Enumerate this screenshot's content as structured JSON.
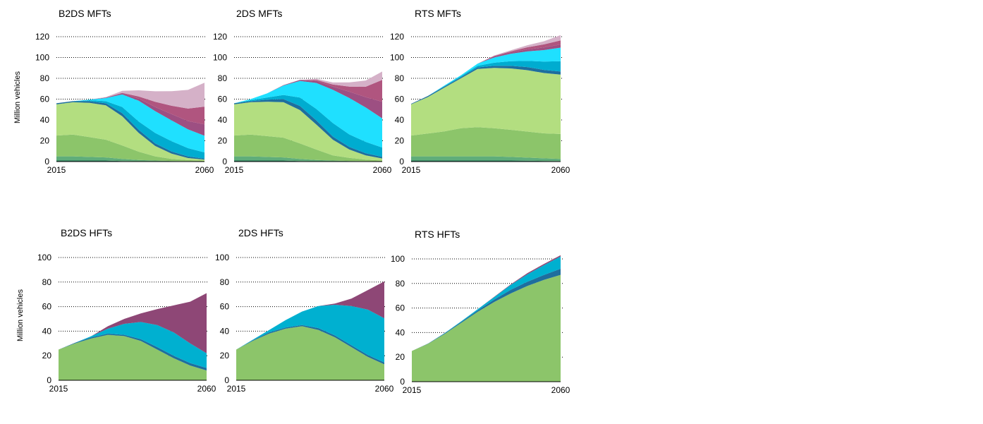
{
  "ylabel": "Million vehicles",
  "chart_data": [
    {
      "id": "b2ds-mft",
      "type": "area",
      "title": "B2DS MFTs",
      "x": [
        2015,
        2020,
        2025,
        2030,
        2035,
        2040,
        2045,
        2050,
        2055,
        2060
      ],
      "xticks": [
        "2015",
        "2060"
      ],
      "ylim": [
        0,
        120
      ],
      "yticks": [
        0,
        20,
        40,
        60,
        80,
        100,
        120
      ],
      "series": [
        {
          "values": [
            1,
            1,
            1,
            1,
            0.5,
            0.3,
            0.2,
            0.1,
            0.1,
            0.1
          ]
        },
        {
          "values": [
            4,
            4,
            3.5,
            3,
            2,
            1.2,
            0.8,
            0.5,
            0.3,
            0.2
          ]
        },
        {
          "values": [
            20,
            21,
            19,
            17,
            13,
            8,
            4,
            2,
            1,
            0.5
          ]
        },
        {
          "values": [
            30,
            31,
            33,
            33,
            28,
            18,
            10,
            5,
            2,
            1
          ]
        },
        {
          "values": [
            1,
            1,
            1.5,
            2,
            3,
            3,
            2.5,
            2,
            1.5,
            1
          ]
        },
        {
          "values": [
            0,
            0,
            1,
            2,
            6,
            8,
            10,
            10,
            8,
            6
          ]
        },
        {
          "values": [
            0,
            0,
            0.5,
            3,
            12,
            20,
            21,
            20,
            18,
            16
          ]
        },
        {
          "values": [
            0,
            0,
            0,
            0.5,
            1,
            2,
            4,
            6,
            8,
            11
          ]
        },
        {
          "values": [
            0,
            0,
            0,
            0,
            0.5,
            2,
            5,
            8,
            12,
            17
          ]
        },
        {
          "values": [
            0,
            0,
            0,
            0.5,
            2,
            6,
            10,
            14,
            18,
            23
          ]
        }
      ]
    },
    {
      "id": "2ds-mft",
      "type": "area",
      "title": "2DS MFTs",
      "x": [
        2015,
        2020,
        2025,
        2030,
        2035,
        2040,
        2045,
        2050,
        2055,
        2060
      ],
      "xticks": [
        "2015",
        "2060"
      ],
      "ylim": [
        0,
        120
      ],
      "yticks": [
        0,
        20,
        40,
        60,
        80,
        100,
        120
      ],
      "series": [
        {
          "values": [
            1,
            1,
            1,
            1,
            0.5,
            0.3,
            0.2,
            0.1,
            0.1,
            0.1
          ]
        },
        {
          "values": [
            4,
            4,
            3.5,
            3,
            2,
            1.2,
            0.8,
            0.5,
            0.3,
            0.2
          ]
        },
        {
          "values": [
            20,
            21,
            20,
            19,
            15,
            10,
            5,
            3,
            1.5,
            0.7
          ]
        },
        {
          "values": [
            30,
            31,
            33,
            34,
            32,
            24,
            15,
            8,
            4,
            2
          ]
        },
        {
          "values": [
            1,
            1,
            2,
            3,
            4,
            4,
            3,
            2.5,
            2,
            1.5
          ]
        },
        {
          "values": [
            0,
            1,
            2,
            4,
            8,
            11,
            13,
            12,
            11,
            9
          ]
        },
        {
          "values": [
            0,
            1,
            4,
            9,
            16,
            25,
            32,
            35,
            33,
            28
          ]
        },
        {
          "values": [
            0,
            0,
            0,
            0.5,
            1,
            2,
            3,
            6,
            10,
            16
          ]
        },
        {
          "values": [
            0,
            0,
            0,
            0,
            0,
            1,
            2,
            5,
            10,
            21
          ]
        },
        {
          "values": [
            0,
            0,
            0,
            0,
            0,
            1,
            2,
            4,
            6,
            8
          ]
        }
      ]
    },
    {
      "id": "rts-mft",
      "type": "area",
      "title": "RTS MFTs",
      "x": [
        2015,
        2020,
        2025,
        2030,
        2035,
        2040,
        2045,
        2050,
        2055,
        2060
      ],
      "xticks": [
        "2015",
        "2060"
      ],
      "ylim": [
        0,
        120
      ],
      "yticks": [
        0,
        20,
        40,
        60,
        80,
        100,
        120
      ],
      "series": [
        {
          "values": [
            1,
            1,
            1,
            1,
            1,
            1,
            1,
            0.8,
            0.6,
            0.5
          ]
        },
        {
          "values": [
            4,
            4,
            4,
            4,
            4,
            4,
            3.5,
            3,
            2.5,
            2
          ]
        },
        {
          "values": [
            20,
            22,
            24,
            27,
            28,
            27,
            26,
            25,
            24,
            24
          ]
        },
        {
          "values": [
            30,
            35,
            42,
            48,
            56,
            58,
            59,
            59,
            58,
            57
          ]
        },
        {
          "values": [
            0.5,
            1,
            1,
            1,
            1.5,
            2,
            2.5,
            3,
            3,
            3
          ]
        },
        {
          "values": [
            0,
            0,
            0.5,
            1,
            1.5,
            3,
            4.5,
            6,
            8,
            10
          ]
        },
        {
          "values": [
            0,
            0,
            0.5,
            1,
            2,
            5,
            7,
            9,
            11,
            13
          ]
        },
        {
          "values": [
            0,
            0,
            0,
            0,
            0,
            1,
            1.5,
            2,
            2.5,
            3
          ]
        },
        {
          "values": [
            0,
            0,
            0,
            0,
            0,
            0.5,
            1,
            2,
            3,
            4
          ]
        },
        {
          "values": [
            0,
            0,
            0,
            0,
            0,
            0.5,
            1,
            2,
            3,
            5
          ]
        }
      ]
    },
    {
      "id": "b2ds-hft",
      "type": "area",
      "title": "B2DS HFTs",
      "x": [
        2015,
        2020,
        2025,
        2030,
        2035,
        2040,
        2045,
        2050,
        2055,
        2060
      ],
      "xticks": [
        "2015",
        "2060"
      ],
      "ylim": [
        0,
        100
      ],
      "yticks": [
        0,
        20,
        40,
        60,
        80,
        100
      ],
      "series": [
        {
          "values": [
            25,
            30,
            34,
            37,
            36,
            32,
            25,
            18,
            12,
            8
          ]
        },
        {
          "values": [
            0,
            0.5,
            1,
            1,
            1,
            1.5,
            2,
            2,
            2,
            2
          ]
        },
        {
          "values": [
            0,
            0,
            1,
            4,
            9,
            14,
            18,
            19,
            16,
            12
          ]
        },
        {
          "values": [
            0,
            0,
            0,
            2,
            4,
            7,
            13,
            22,
            34,
            49
          ]
        }
      ]
    },
    {
      "id": "2ds-hft",
      "type": "area",
      "title": "2DS HFTs",
      "x": [
        2015,
        2020,
        2025,
        2030,
        2035,
        2040,
        2045,
        2050,
        2055,
        2060
      ],
      "xticks": [
        "2015",
        "2060"
      ],
      "ylim": [
        0,
        100
      ],
      "yticks": [
        0,
        20,
        40,
        60,
        80,
        100
      ],
      "series": [
        {
          "values": [
            25,
            32,
            38,
            42,
            44,
            41,
            35,
            27,
            19,
            13
          ]
        },
        {
          "values": [
            0,
            0.5,
            1,
            1,
            1,
            1.5,
            1.5,
            1.5,
            1.5,
            1.5
          ]
        },
        {
          "values": [
            0,
            0.5,
            2,
            6,
            11,
            18,
            25,
            32,
            37,
            36
          ]
        },
        {
          "values": [
            0,
            0,
            0,
            0,
            0,
            0,
            1,
            6,
            16,
            30
          ]
        }
      ]
    },
    {
      "id": "rts-hft",
      "type": "area",
      "title": "RTS HFTs",
      "x": [
        2015,
        2020,
        2025,
        2030,
        2035,
        2040,
        2045,
        2050,
        2055,
        2060
      ],
      "xticks": [
        "2015",
        "2060"
      ],
      "ylim": [
        0,
        100
      ],
      "yticks": [
        0,
        20,
        40,
        60,
        80,
        100
      ],
      "series": [
        {
          "values": [
            25,
            31,
            39,
            48,
            57,
            65,
            72,
            78,
            83,
            87
          ]
        },
        {
          "values": [
            0,
            0.2,
            0.5,
            0.8,
            1.2,
            2,
            3,
            3.5,
            4,
            5
          ]
        },
        {
          "values": [
            0,
            0,
            0.2,
            0.5,
            1,
            2,
            4,
            6,
            8,
            10
          ]
        },
        {
          "values": [
            0,
            0,
            0,
            0,
            0,
            0.3,
            0.5,
            1,
            1,
            1
          ]
        }
      ]
    }
  ],
  "colors": {
    "mft": [
      "#2f7f63",
      "#5fad7a",
      "#8cc56a",
      "#b3de80",
      "#1e6e9e",
      "#0077a8",
      "#00acd0",
      "#1fe0ff",
      "#9d4f82",
      "#b0557f",
      "#d5b1c8"
    ],
    "mft_layers": [
      "#2f7f63",
      "#5fad7a",
      "#8cc56a",
      "#b3de80",
      "#1e6e9e",
      "#00acd0",
      "#1fe0ff",
      "#9d4f82",
      "#b0557f",
      "#d5b1c8"
    ],
    "hft_layers": [
      "#8cc56a",
      "#1e6e9e",
      "#00b0d0",
      "#8e4776"
    ],
    "gridline": "#000000"
  }
}
